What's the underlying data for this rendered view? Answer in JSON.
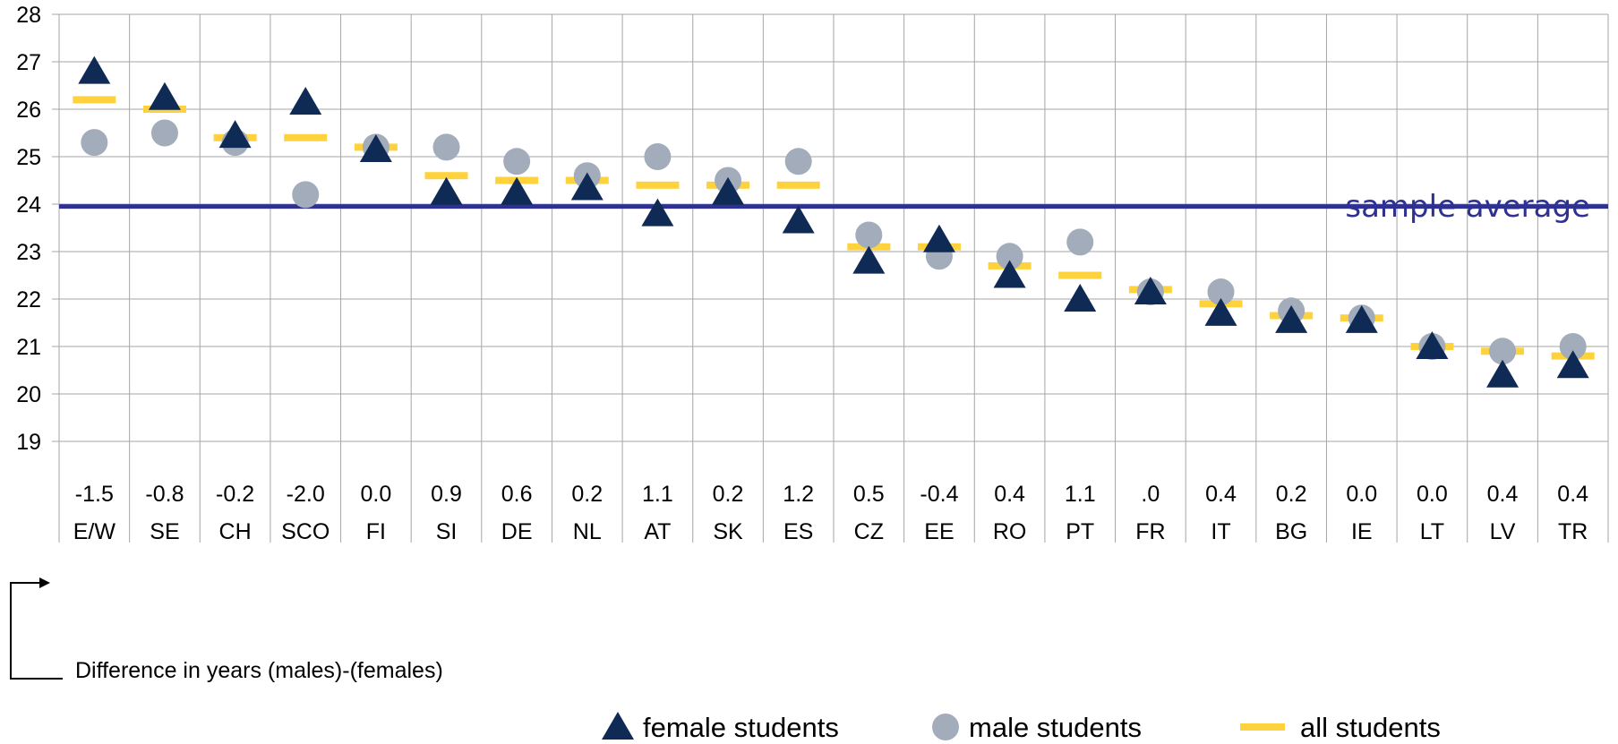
{
  "chart_data": {
    "type": "scatter",
    "categories": [
      "E/W",
      "SE",
      "CH",
      "SCO",
      "FI",
      "SI",
      "DE",
      "NL",
      "AT",
      "SK",
      "ES",
      "CZ",
      "EE",
      "RO",
      "PT",
      "FR",
      "IT",
      "BG",
      "IE",
      "LT",
      "LV",
      "TR"
    ],
    "differences": [
      "-1.5",
      "-0.8",
      "-0.2",
      "-2.0",
      "0.0",
      "0.9",
      "0.6",
      "0.2",
      "1.1",
      "0.2",
      "1.2",
      "0.5",
      "-0.4",
      "0.4",
      "1.1",
      ".0",
      "0.4",
      "0.2",
      "0.0",
      "0.0",
      "0.4",
      "0.4"
    ],
    "difference_label": "Difference in years (males)-(females)",
    "ylim": [
      19,
      28
    ],
    "yticks": [
      "19",
      "20",
      "21",
      "22",
      "23",
      "24",
      "25",
      "26",
      "27",
      "28"
    ],
    "grid": true,
    "series": [
      {
        "name": "female students",
        "marker": "triangle",
        "color": "#0f2a55",
        "values": [
          26.8,
          26.25,
          25.45,
          26.15,
          25.15,
          24.25,
          24.25,
          24.35,
          23.8,
          24.25,
          23.65,
          22.8,
          23.25,
          22.5,
          22.0,
          22.15,
          21.7,
          21.55,
          21.55,
          21.0,
          20.4,
          20.6
        ]
      },
      {
        "name": "male students",
        "marker": "circle",
        "color": "#a2acba",
        "values": [
          25.3,
          25.5,
          25.3,
          24.2,
          25.2,
          25.2,
          24.9,
          24.6,
          25.0,
          24.5,
          24.9,
          23.35,
          22.9,
          22.9,
          23.2,
          22.15,
          22.15,
          21.75,
          21.6,
          21.0,
          20.9,
          21.0
        ]
      },
      {
        "name": "all students",
        "marker": "dash",
        "color": "#fdd23d",
        "values": [
          26.2,
          26.0,
          25.4,
          25.4,
          25.2,
          24.6,
          24.5,
          24.5,
          24.4,
          24.4,
          24.4,
          23.1,
          23.1,
          22.7,
          22.5,
          22.2,
          21.9,
          21.65,
          21.6,
          21.0,
          20.9,
          20.8
        ]
      }
    ],
    "reference_line": {
      "label": "sample average",
      "value": 23.95,
      "color": "#2e3192"
    },
    "legend_position": "bottom"
  }
}
